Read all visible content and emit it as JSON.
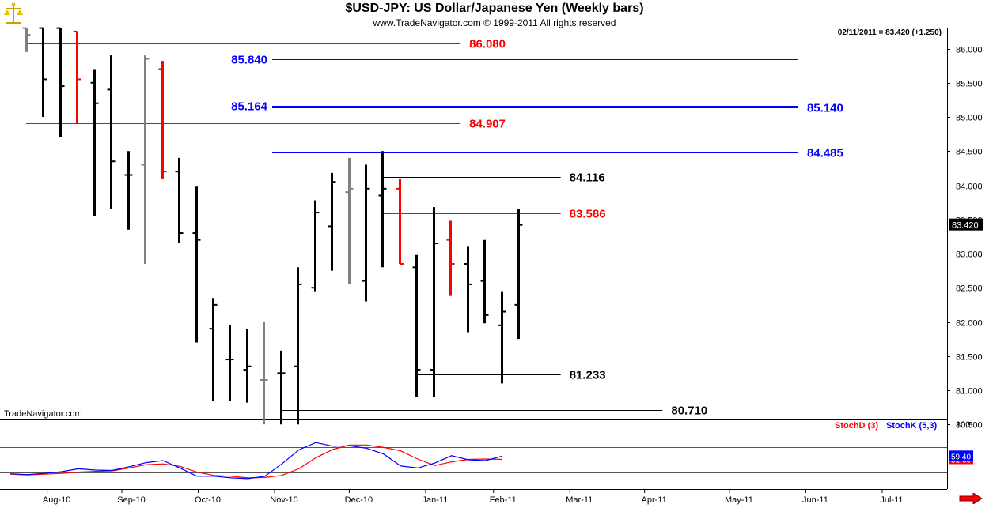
{
  "header": {
    "title": "$USD-JPY:  US Dollar/Japanese Yen  (Weekly bars)",
    "subtitle": "www.TradeNavigator.com © 1999-2011 All rights reserved",
    "last_info": "02/11/2011 = 83.420 (+1.250)",
    "watermark": "TradeNavigator.com",
    "logo_icon": "gold-scales-icon",
    "scroll_icon": "red-arrow-right-icon"
  },
  "colors": {
    "up_bar": "#000000",
    "neutral_bar": "#808080",
    "down_bar": "#ff0000",
    "red_level": "#ff0000",
    "blue_level": "#0000ff",
    "black_level": "#000000",
    "stochD": "#ff0000",
    "stochK": "#0000ff"
  },
  "chart_data": [
    {
      "type": "ohlc",
      "title": "$USD-JPY:  US Dollar/Japanese Yen  (Weekly bars)",
      "ylim": [
        80.45,
        86.35
      ],
      "y_ticks": [
        "86.000",
        "85.500",
        "85.000",
        "84.500",
        "84.000",
        "83.500",
        "83.000",
        "82.500",
        "82.000",
        "81.500",
        "81.000",
        "80.500"
      ],
      "x_labels": [
        "Aug-10",
        "Sep-10",
        "Oct-10",
        "Nov-10",
        "Dec-10",
        "Jan-11",
        "Feb-11",
        "Mar-11",
        "Apr-11",
        "May-11",
        "Jun-11",
        "Jul-11"
      ],
      "x_label_weeks": [
        1.8,
        6.2,
        10.7,
        15.2,
        19.6,
        24.1,
        28.1,
        32.6,
        37,
        42,
        46.5,
        51
      ],
      "last_price_tag": "83.420",
      "bars": [
        {
          "w": 0,
          "o": 86.3,
          "h": 86.3,
          "l": 85.95,
          "c": 86.2,
          "color": "neutral"
        },
        {
          "w": 1,
          "o": 86.3,
          "h": 86.3,
          "l": 85.0,
          "c": 85.55,
          "color": "up"
        },
        {
          "w": 2,
          "o": 86.3,
          "h": 86.3,
          "l": 84.7,
          "c": 85.45,
          "color": "up"
        },
        {
          "w": 3,
          "o": 86.25,
          "h": 86.25,
          "l": 84.9,
          "c": 85.55,
          "color": "down"
        },
        {
          "w": 4,
          "o": 85.5,
          "h": 85.7,
          "l": 83.55,
          "c": 85.2,
          "color": "up"
        },
        {
          "w": 5,
          "o": 85.4,
          "h": 85.9,
          "l": 83.65,
          "c": 84.35,
          "color": "up"
        },
        {
          "w": 6,
          "o": 84.15,
          "h": 84.5,
          "l": 83.35,
          "c": 84.15,
          "color": "up"
        },
        {
          "w": 7,
          "o": 84.3,
          "h": 85.9,
          "l": 82.85,
          "c": 85.85,
          "color": "neutral"
        },
        {
          "w": 8,
          "o": 85.7,
          "h": 85.82,
          "l": 84.1,
          "c": 84.2,
          "color": "down"
        },
        {
          "w": 9,
          "o": 84.2,
          "h": 84.4,
          "l": 83.15,
          "c": 83.3,
          "color": "up"
        },
        {
          "w": 10,
          "o": 83.3,
          "h": 83.98,
          "l": 81.7,
          "c": 83.2,
          "color": "up"
        },
        {
          "w": 11,
          "o": 81.9,
          "h": 82.35,
          "l": 80.85,
          "c": 82.25,
          "color": "up"
        },
        {
          "w": 12,
          "o": 81.45,
          "h": 81.95,
          "l": 80.85,
          "c": 81.45,
          "color": "up"
        },
        {
          "w": 13,
          "o": 81.3,
          "h": 81.9,
          "l": 80.82,
          "c": 81.35,
          "color": "up"
        },
        {
          "w": 14,
          "o": 81.15,
          "h": 82.0,
          "l": 80.5,
          "c": 81.15,
          "color": "neutral"
        },
        {
          "w": 15,
          "o": 81.25,
          "h": 81.58,
          "l": 80.5,
          "c": 81.25,
          "color": "up"
        },
        {
          "w": 16,
          "o": 81.35,
          "h": 82.8,
          "l": 80.5,
          "c": 82.55,
          "color": "up"
        },
        {
          "w": 17,
          "o": 82.5,
          "h": 83.78,
          "l": 82.45,
          "c": 83.6,
          "color": "up"
        },
        {
          "w": 18,
          "o": 83.4,
          "h": 84.18,
          "l": 82.75,
          "c": 84.05,
          "color": "up"
        },
        {
          "w": 19,
          "o": 83.9,
          "h": 84.4,
          "l": 82.55,
          "c": 83.95,
          "color": "neutral"
        },
        {
          "w": 20,
          "o": 82.6,
          "h": 84.3,
          "l": 82.3,
          "c": 83.95,
          "color": "up"
        },
        {
          "w": 21,
          "o": 83.85,
          "h": 84.5,
          "l": 82.8,
          "c": 83.95,
          "color": "up"
        },
        {
          "w": 22,
          "o": 83.95,
          "h": 84.1,
          "l": 82.85,
          "c": 82.85,
          "color": "down"
        },
        {
          "w": 23,
          "o": 82.8,
          "h": 82.98,
          "l": 80.9,
          "c": 81.3,
          "color": "up"
        },
        {
          "w": 24,
          "o": 81.3,
          "h": 83.68,
          "l": 80.9,
          "c": 83.15,
          "color": "up"
        },
        {
          "w": 25,
          "o": 83.2,
          "h": 83.48,
          "l": 82.38,
          "c": 82.85,
          "color": "down"
        },
        {
          "w": 26,
          "o": 82.85,
          "h": 83.1,
          "l": 81.85,
          "c": 82.55,
          "color": "up"
        },
        {
          "w": 27,
          "o": 82.6,
          "h": 83.2,
          "l": 81.98,
          "c": 82.1,
          "color": "up"
        },
        {
          "w": 28,
          "o": 81.95,
          "h": 82.45,
          "l": 81.1,
          "c": 82.15,
          "color": "up"
        },
        {
          "w": 29,
          "o": 82.25,
          "h": 83.65,
          "l": 81.75,
          "c": 83.42,
          "color": "up"
        }
      ],
      "levels": [
        {
          "value": 86.08,
          "label": "86.080",
          "color": "red",
          "x0": 0,
          "x1": 25.6,
          "label_at": "right-end"
        },
        {
          "value": 85.84,
          "label": "85.840",
          "color": "blue",
          "x0": 14.5,
          "x1": 45.5,
          "label_at": "left-start"
        },
        {
          "value": 85.164,
          "label": "85.164",
          "color": "blue",
          "x0": 14.5,
          "x1": 45.5,
          "label_at": "left-start"
        },
        {
          "value": 85.14,
          "label": "85.140",
          "color": "blue",
          "x0": 14.5,
          "x1": 45.5,
          "label_at": "right-end"
        },
        {
          "value": 84.907,
          "label": "84.907",
          "color": "red",
          "x0": 0,
          "x1": 25.6,
          "label_at": "right-end"
        },
        {
          "value": 84.485,
          "label": "84.485",
          "color": "blue",
          "x0": 14.5,
          "x1": 45.5,
          "label_at": "right-end"
        },
        {
          "value": 84.116,
          "label": "84.116",
          "color": "black",
          "x0": 21,
          "x1": 31.5,
          "label_at": "right-end"
        },
        {
          "value": 83.586,
          "label": "83.586",
          "color": "red",
          "x0": 21,
          "x1": 31.5,
          "label_at": "right-end"
        },
        {
          "value": 81.233,
          "label": "81.233",
          "color": "black",
          "x0": 23,
          "x1": 31.5,
          "label_at": "right-end"
        },
        {
          "value": 80.71,
          "label": "80.710",
          "color": "black",
          "x0": 15,
          "x1": 37.5,
          "label_at": "right-end"
        }
      ]
    },
    {
      "type": "line",
      "ylim": [
        0,
        100
      ],
      "y_ticks": [
        "100"
      ],
      "reference_lines": [
        80,
        20
      ],
      "series": [
        {
          "name": "StochD (3)",
          "color": "red",
          "last_label": "51.69",
          "values": [
            15,
            13,
            15,
            17,
            20,
            22,
            23,
            30,
            38,
            40,
            34,
            20,
            12,
            10,
            6,
            7,
            12,
            28,
            55,
            75,
            86,
            86,
            80,
            72,
            52,
            36,
            45,
            51,
            52,
            51
          ]
        },
        {
          "name": "StochK (5,3)",
          "color": "blue",
          "last_label": "59.40",
          "values": [
            16,
            14,
            17,
            21,
            28,
            25,
            24,
            33,
            43,
            48,
            30,
            10,
            10,
            6,
            4,
            10,
            40,
            74,
            92,
            83,
            84,
            78,
            64,
            35,
            30,
            42,
            60,
            50,
            48,
            59
          ]
        }
      ]
    }
  ]
}
